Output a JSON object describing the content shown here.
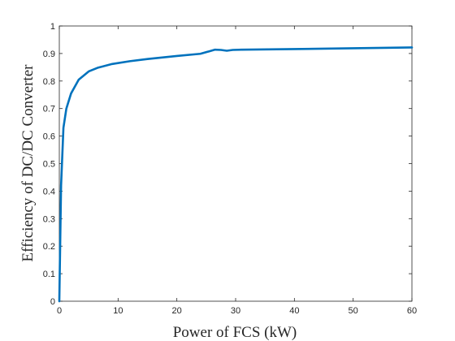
{
  "chart_data": {
    "type": "line",
    "title": "",
    "xlabel": "Power of FCS (kW)",
    "ylabel": "Efficiency of DC/DC Converter",
    "xlim": [
      0,
      60
    ],
    "ylim": [
      0,
      1
    ],
    "xticks": [
      0,
      10,
      20,
      30,
      40,
      50,
      60
    ],
    "yticks": [
      0,
      0.1,
      0.2,
      0.3,
      0.4,
      0.5,
      0.6,
      0.7,
      0.8,
      0.9,
      1
    ],
    "xtick_labels": [
      "0",
      "10",
      "20",
      "30",
      "40",
      "50",
      "60"
    ],
    "ytick_labels": [
      "0",
      "0.1",
      "0.2",
      "0.3",
      "0.4",
      "0.5",
      "0.6",
      "0.7",
      "0.8",
      "0.9",
      "1"
    ],
    "grid": false,
    "series": [
      {
        "color": "#0072BD",
        "x": [
          0,
          0.3,
          0.7,
          1.2,
          2.0,
          3.3,
          5.0,
          6.5,
          9.0,
          12.0,
          15.0,
          20.0,
          24.0,
          25.5,
          26.5,
          27.5,
          28.5,
          29.5,
          31.0,
          40.0,
          50.0,
          60.0
        ],
        "y": [
          0,
          0.42,
          0.63,
          0.7,
          0.755,
          0.805,
          0.835,
          0.848,
          0.862,
          0.872,
          0.88,
          0.891,
          0.899,
          0.908,
          0.914,
          0.913,
          0.91,
          0.913,
          0.914,
          0.916,
          0.919,
          0.922
        ]
      }
    ]
  }
}
